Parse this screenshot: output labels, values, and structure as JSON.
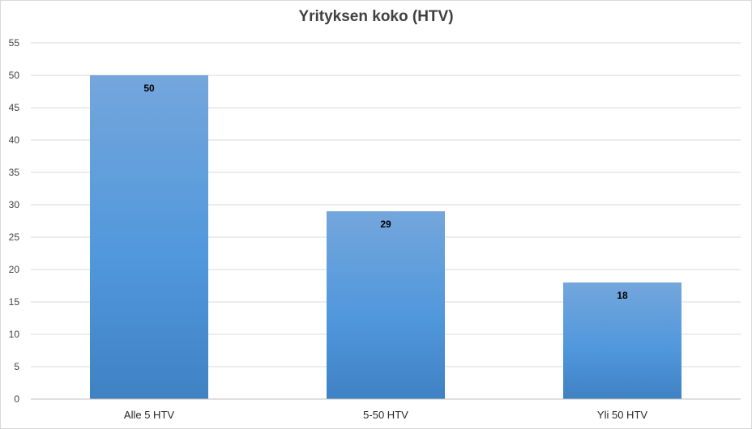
{
  "chart_data": {
    "type": "bar",
    "title": "Yrityksen koko (HTV)",
    "categories": [
      "Alle 5 HTV",
      "5-50 HTV",
      "Yli 50 HTV"
    ],
    "values": [
      50,
      29,
      18
    ],
    "data_labels": [
      "50",
      "29",
      "18"
    ],
    "ylim": [
      0,
      55
    ],
    "yticks": [
      0,
      5,
      10,
      15,
      20,
      25,
      30,
      35,
      40,
      45,
      50,
      55
    ],
    "grid": true,
    "legend": "none",
    "bar_color": "#5b9bd5"
  }
}
